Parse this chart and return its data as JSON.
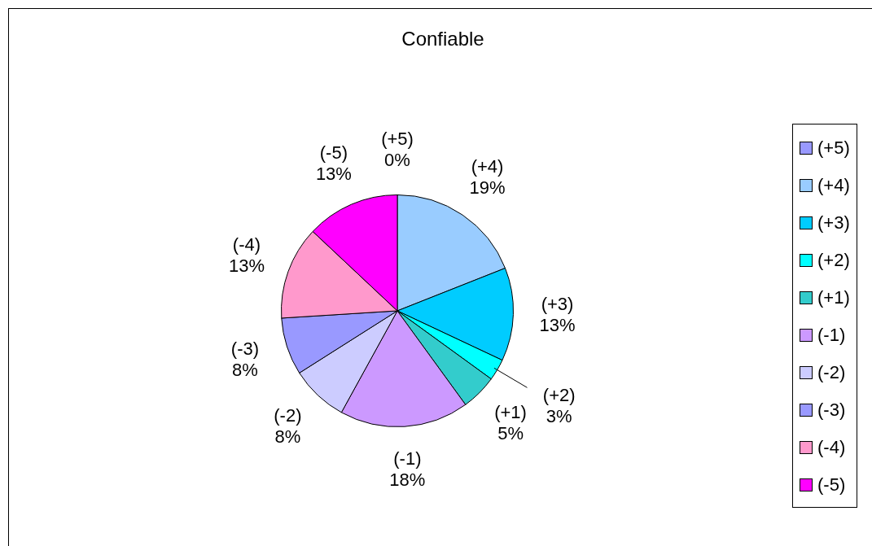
{
  "chart_data": {
    "type": "pie",
    "title": "Confiable",
    "categories": [
      "(+5)",
      "(+4)",
      "(+3)",
      "(+2)",
      "(+1)",
      "(-1)",
      "(-2)",
      "(-3)",
      "(-4)",
      "(-5)"
    ],
    "values": [
      0,
      19,
      13,
      3,
      5,
      18,
      8,
      8,
      13,
      13
    ],
    "colors": [
      "#9999ff",
      "#99ccff",
      "#00ccff",
      "#00ffff",
      "#33cccc",
      "#cc99ff",
      "#ccccff",
      "#9999ff",
      "#ff99cc",
      "#ff00ff"
    ],
    "value_labels": [
      "0%",
      "19%",
      "13%",
      "3%",
      "5%",
      "18%",
      "8%",
      "8%",
      "13%",
      "13%"
    ],
    "legend": "right"
  }
}
